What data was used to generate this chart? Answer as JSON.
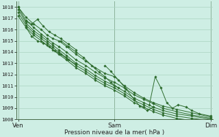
{
  "title": "Pression niveau de la mer( hPa )",
  "bg_color": "#ceeee4",
  "grid_color": "#aad4c0",
  "line_color": "#2d6b2d",
  "marker_color": "#2d6b2d",
  "ylim": [
    1008,
    1018.5
  ],
  "yticks": [
    1008,
    1009,
    1010,
    1011,
    1012,
    1013,
    1014,
    1015,
    1016,
    1017,
    1018
  ],
  "xtick_labels": [
    "Ven",
    "Sam",
    "Dim"
  ],
  "xtick_positions": [
    0.0,
    0.5,
    1.0
  ],
  "series": [
    {
      "x": [
        0.0,
        0.04,
        0.08,
        0.12,
        0.15,
        0.18,
        0.21,
        0.25,
        0.3,
        0.35,
        0.4,
        0.45,
        0.5,
        0.55,
        0.6,
        0.65,
        0.7,
        0.75,
        0.82,
        0.9,
        1.0
      ],
      "y": [
        1018.0,
        1017.1,
        1016.5,
        1016.0,
        1015.5,
        1015.2,
        1015.0,
        1014.5,
        1013.8,
        1013.2,
        1012.6,
        1012.1,
        1011.8,
        1011.0,
        1010.4,
        1009.9,
        1009.5,
        1009.2,
        1008.9,
        1008.6,
        1008.2
      ]
    },
    {
      "x": [
        0.0,
        0.04,
        0.08,
        0.12,
        0.15,
        0.18,
        0.21,
        0.25,
        0.3,
        0.35,
        0.4,
        0.45,
        0.5,
        0.55,
        0.6,
        0.65,
        0.7,
        0.75,
        0.82,
        0.9,
        1.0
      ],
      "y": [
        1018.0,
        1016.8,
        1016.2,
        1015.6,
        1015.2,
        1014.8,
        1014.5,
        1014.0,
        1013.3,
        1012.8,
        1012.2,
        1011.7,
        1011.3,
        1010.8,
        1010.2,
        1009.8,
        1009.4,
        1009.0,
        1008.7,
        1008.4,
        1008.1
      ]
    },
    {
      "x": [
        0.0,
        0.04,
        0.08,
        0.12,
        0.15,
        0.18,
        0.21,
        0.25,
        0.3,
        0.35,
        0.4,
        0.45,
        0.5,
        0.55,
        0.6,
        0.65,
        0.7,
        0.75,
        0.82,
        0.9,
        1.0
      ],
      "y": [
        1017.8,
        1016.6,
        1015.9,
        1015.4,
        1015.0,
        1014.6,
        1014.2,
        1013.7,
        1013.0,
        1012.5,
        1011.9,
        1011.4,
        1011.0,
        1010.5,
        1009.9,
        1009.5,
        1009.1,
        1008.8,
        1008.5,
        1008.3,
        1008.0
      ]
    },
    {
      "x": [
        0.0,
        0.04,
        0.08,
        0.12,
        0.15,
        0.18,
        0.21,
        0.25,
        0.3,
        0.35,
        0.4,
        0.45,
        0.5,
        0.55,
        0.6,
        0.65,
        0.7,
        0.75,
        0.82,
        0.9,
        1.0
      ],
      "y": [
        1017.5,
        1016.4,
        1015.7,
        1015.2,
        1014.8,
        1014.4,
        1014.0,
        1013.5,
        1012.8,
        1012.3,
        1011.7,
        1011.2,
        1010.8,
        1010.3,
        1009.7,
        1009.3,
        1008.9,
        1008.6,
        1008.3,
        1008.1,
        1007.9
      ]
    },
    {
      "x": [
        0.0,
        0.04,
        0.08,
        0.12,
        0.15,
        0.18,
        0.21,
        0.25,
        0.3,
        0.35,
        0.4,
        0.45,
        0.5,
        0.55,
        0.6,
        0.65,
        0.7,
        0.75,
        0.82,
        0.9,
        1.0
      ],
      "y": [
        1017.2,
        1016.2,
        1015.5,
        1015.0,
        1014.6,
        1014.2,
        1013.8,
        1013.3,
        1012.6,
        1012.1,
        1011.5,
        1011.0,
        1010.6,
        1010.1,
        1009.5,
        1009.1,
        1008.7,
        1008.4,
        1008.1,
        1007.9,
        1007.8
      ]
    }
  ],
  "wiggly_series": [
    {
      "x": [
        0.04,
        0.07,
        0.1,
        0.13,
        0.16,
        0.19,
        0.22,
        0.26,
        0.3
      ],
      "y": [
        1016.8,
        1016.5,
        1016.9,
        1016.3,
        1015.8,
        1015.5,
        1015.2,
        1014.7,
        1014.2
      ]
    },
    {
      "x": [
        0.04,
        0.07,
        0.1,
        0.13,
        0.16,
        0.19,
        0.22,
        0.26,
        0.3
      ],
      "y": [
        1016.2,
        1015.4,
        1015.0,
        1014.8,
        1014.5,
        1014.1,
        1013.8,
        1013.3,
        1012.9
      ]
    },
    {
      "x": [
        0.22,
        0.26,
        0.3,
        0.34,
        0.38,
        0.42,
        0.45,
        0.48,
        0.52
      ],
      "y": [
        1015.0,
        1014.5,
        1014.0,
        1013.5,
        1012.8,
        1012.2,
        1011.8,
        1011.3,
        1010.8
      ]
    },
    {
      "x": [
        0.45,
        0.48,
        0.52,
        0.56,
        0.6,
        0.63,
        0.67,
        0.7
      ],
      "y": [
        1012.8,
        1012.3,
        1011.5,
        1010.7,
        1009.8,
        1009.2,
        1008.8,
        1009.1
      ]
    },
    {
      "x": [
        0.68,
        0.71,
        0.74,
        0.77,
        0.8,
        0.83,
        0.87,
        0.9,
        0.94,
        1.0
      ],
      "y": [
        1009.3,
        1011.8,
        1010.8,
        1009.5,
        1009.0,
        1009.3,
        1009.1,
        1008.8,
        1008.5,
        1008.3
      ]
    }
  ]
}
